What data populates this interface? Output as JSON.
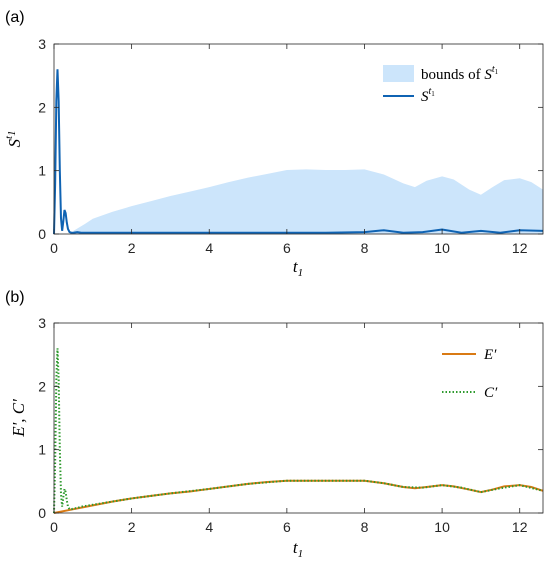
{
  "panels": [
    {
      "label": "(a)"
    },
    {
      "label": "(b)"
    }
  ],
  "chart_data": [
    {
      "type": "area",
      "xlabel": "t1",
      "ylabel": "S^t1",
      "xlim": [
        0,
        12.6
      ],
      "ylim": [
        0,
        3
      ],
      "xticks": [
        "0",
        "2",
        "4",
        "6",
        "8",
        "10",
        "12"
      ],
      "yticks": [
        "0",
        "1",
        "2",
        "3"
      ],
      "legend_position": "top-right",
      "legend": [
        {
          "text_main": "bounds of ",
          "text_sym": "S",
          "text_sup": "t",
          "text_sub": "1"
        },
        {
          "text_main": "",
          "text_sym": "S",
          "text_sup": "t",
          "text_sub": "1"
        }
      ],
      "colors": {
        "bounds": "#cce5fb",
        "line": "#0f63b3"
      },
      "series": [
        {
          "name": "bounds of S^t1",
          "x": [
            0.5,
            0.8,
            1.0,
            1.5,
            2.0,
            2.5,
            3.0,
            3.5,
            4.0,
            4.5,
            5.0,
            5.5,
            6.0,
            6.5,
            7.0,
            7.5,
            8.0,
            8.5,
            9.0,
            9.3,
            9.6,
            10.0,
            10.3,
            10.7,
            11.0,
            11.3,
            11.6,
            12.0,
            12.3,
            12.6
          ],
          "upper": [
            0.05,
            0.16,
            0.24,
            0.35,
            0.44,
            0.52,
            0.6,
            0.67,
            0.74,
            0.82,
            0.89,
            0.95,
            1.01,
            1.02,
            1.01,
            1.01,
            1.02,
            0.94,
            0.8,
            0.74,
            0.84,
            0.91,
            0.86,
            0.7,
            0.62,
            0.74,
            0.85,
            0.88,
            0.82,
            0.7
          ],
          "lower": [
            0.0,
            0.0,
            0.0,
            0.0,
            0.0,
            0.0,
            0.0,
            0.0,
            0.0,
            0.0,
            0.0,
            0.0,
            0.0,
            0.0,
            0.0,
            0.0,
            0.0,
            0.0,
            0.0,
            0.0,
            0.0,
            0.0,
            0.0,
            0.0,
            0.0,
            0.0,
            0.0,
            0.0,
            0.0,
            0.0
          ]
        },
        {
          "name": "S^t1",
          "x": [
            0.0,
            0.03,
            0.06,
            0.09,
            0.12,
            0.15,
            0.18,
            0.21,
            0.24,
            0.27,
            0.3,
            0.33,
            0.36,
            0.4,
            0.45,
            0.5,
            0.6,
            0.7,
            0.8,
            1.0,
            1.5,
            2.0,
            3.0,
            4.0,
            5.0,
            6.0,
            7.0,
            8.0,
            8.5,
            9.0,
            9.5,
            10.0,
            10.5,
            11.0,
            11.5,
            12.0,
            12.6
          ],
          "y": [
            0.0,
            0.8,
            2.1,
            2.6,
            2.1,
            1.0,
            0.25,
            0.05,
            0.2,
            0.38,
            0.33,
            0.18,
            0.08,
            0.03,
            0.02,
            0.02,
            0.03,
            0.02,
            0.02,
            0.02,
            0.02,
            0.02,
            0.02,
            0.02,
            0.02,
            0.02,
            0.02,
            0.03,
            0.06,
            0.02,
            0.03,
            0.07,
            0.02,
            0.05,
            0.02,
            0.06,
            0.05
          ]
        }
      ]
    },
    {
      "type": "line",
      "xlabel": "t1",
      "ylabel": "E', C'",
      "xlim": [
        0,
        12.6
      ],
      "ylim": [
        0,
        3
      ],
      "xticks": [
        "0",
        "2",
        "4",
        "6",
        "8",
        "10",
        "12"
      ],
      "yticks": [
        "0",
        "1",
        "2",
        "3"
      ],
      "legend_position": "top-right",
      "legend": [
        {
          "text_main": "E′"
        },
        {
          "text_main": "C′"
        }
      ],
      "colors": {
        "E": "#d97a14",
        "C": "#2e9a2e"
      },
      "series": [
        {
          "name": "E'",
          "x": [
            0.0,
            0.5,
            1.0,
            1.5,
            2.0,
            2.5,
            3.0,
            3.5,
            4.0,
            4.5,
            5.0,
            5.5,
            6.0,
            6.5,
            7.0,
            7.5,
            8.0,
            8.5,
            9.0,
            9.3,
            9.6,
            10.0,
            10.3,
            10.7,
            11.0,
            11.3,
            11.6,
            12.0,
            12.3,
            12.6
          ],
          "y": [
            0.0,
            0.06,
            0.12,
            0.18,
            0.23,
            0.27,
            0.31,
            0.34,
            0.38,
            0.42,
            0.46,
            0.49,
            0.51,
            0.51,
            0.51,
            0.51,
            0.51,
            0.47,
            0.41,
            0.39,
            0.41,
            0.44,
            0.42,
            0.37,
            0.33,
            0.37,
            0.42,
            0.44,
            0.41,
            0.35
          ]
        },
        {
          "name": "C'",
          "x": [
            0.0,
            0.03,
            0.06,
            0.09,
            0.12,
            0.15,
            0.18,
            0.21,
            0.24,
            0.27,
            0.3,
            0.33,
            0.36,
            0.4,
            0.45,
            0.5,
            0.6,
            0.7,
            0.8,
            1.0,
            1.5,
            2.0,
            3.0,
            4.0,
            5.0,
            6.0,
            7.0,
            8.0,
            8.5,
            9.0,
            9.5,
            10.0,
            10.5,
            11.0,
            11.5,
            12.0,
            12.6
          ],
          "y": [
            0.0,
            0.8,
            2.1,
            2.6,
            2.1,
            1.0,
            0.3,
            0.1,
            0.25,
            0.38,
            0.33,
            0.2,
            0.1,
            0.06,
            0.06,
            0.07,
            0.08,
            0.1,
            0.11,
            0.13,
            0.18,
            0.23,
            0.31,
            0.38,
            0.46,
            0.51,
            0.51,
            0.51,
            0.47,
            0.41,
            0.4,
            0.44,
            0.4,
            0.33,
            0.39,
            0.44,
            0.35
          ]
        }
      ]
    }
  ]
}
